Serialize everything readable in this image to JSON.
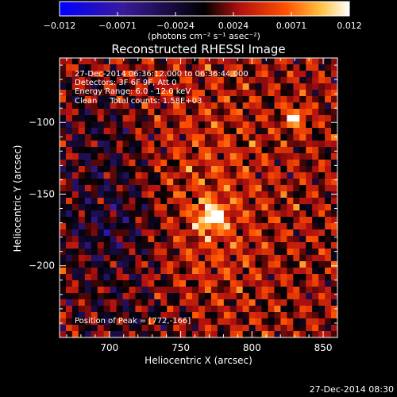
{
  "chart_data": {
    "type": "heatmap",
    "title": "Reconstructed RHESSI Image",
    "xlabel": "Heliocentric X (arcsec)",
    "ylabel": "Heliocentric Y (arcsec)",
    "xlim": [
      665,
      860
    ],
    "ylim": [
      -250,
      -55
    ],
    "x_ticks": [
      700,
      750,
      800,
      850
    ],
    "y_ticks": [
      -100,
      -150,
      -200
    ],
    "colorbar": {
      "range": [
        -0.012,
        0.012
      ],
      "ticks": [
        "−0.012",
        "−0.0071",
        "−0.0024",
        "0.0024",
        "0.0071",
        "0.012"
      ],
      "unit_label": "(photons cm⁻² s⁻¹ asec⁻²)",
      "colors": [
        "#0000ff",
        "#3a1a9a",
        "#000000",
        "#b01010",
        "#ff5000",
        "#ffc040",
        "#ffffff"
      ]
    },
    "annotations": [
      "27-Dec-2014 06:36:12.000 to 06:36:44.000",
      "Detectors: 3F 6F 9F, Att 0",
      "Energy Range: 6.0 - 12.0 keV",
      "Clean     Total counts: 1.58E+03"
    ],
    "peak_label": "Position of Peak = [772,-166]",
    "peak": {
      "x": 772,
      "y": -166
    },
    "secondary_peak": {
      "x": 831,
      "y": -97
    }
  },
  "footer_timestamp": "27-Dec-2014 08:30"
}
